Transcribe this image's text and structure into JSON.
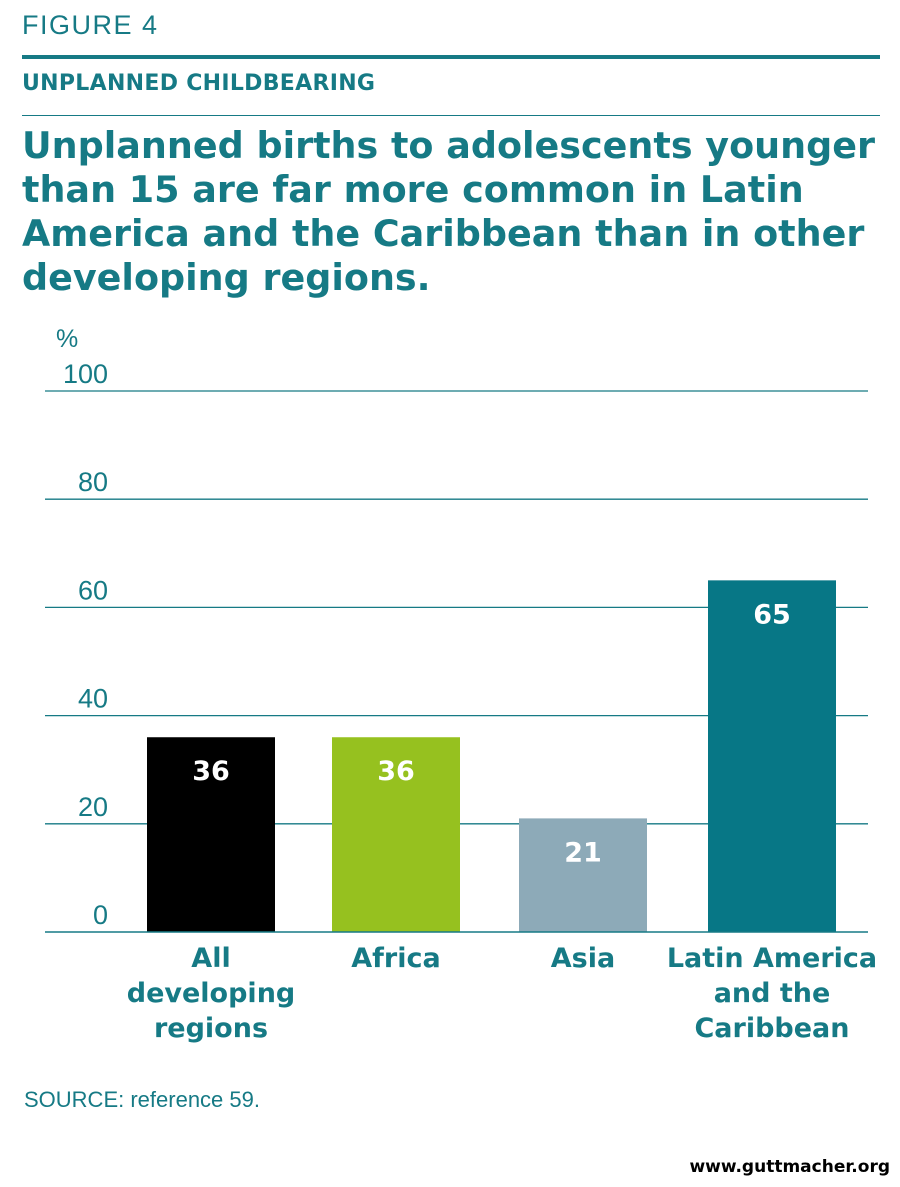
{
  "header": {
    "figure_label": "FIGURE 4",
    "kicker": "UNPLANNED CHILDBEARING",
    "headline": "Unplanned births to adolescents younger than 15 are far more common in Latin America and the Caribbean than in other developing regions."
  },
  "chart_data": {
    "type": "bar",
    "y_unit": "%",
    "ylim": [
      0,
      100
    ],
    "yticks": [
      0,
      20,
      40,
      60,
      80,
      100
    ],
    "grid": true,
    "categories": [
      [
        "All",
        "developing",
        "regions"
      ],
      [
        "Africa"
      ],
      [
        "Asia"
      ],
      [
        "Latin America",
        "and the",
        "Caribbean"
      ]
    ],
    "values": [
      36,
      36,
      21,
      65
    ],
    "bar_colors": [
      "#000000",
      "#96c11f",
      "#8daab8",
      "#077786"
    ],
    "data_labels": [
      "36",
      "36",
      "21",
      "65"
    ]
  },
  "footer": {
    "source": "SOURCE: reference 59.",
    "website": "www.guttmacher.org"
  },
  "colors": {
    "accent": "#167a85",
    "gridline": "#167a85"
  }
}
